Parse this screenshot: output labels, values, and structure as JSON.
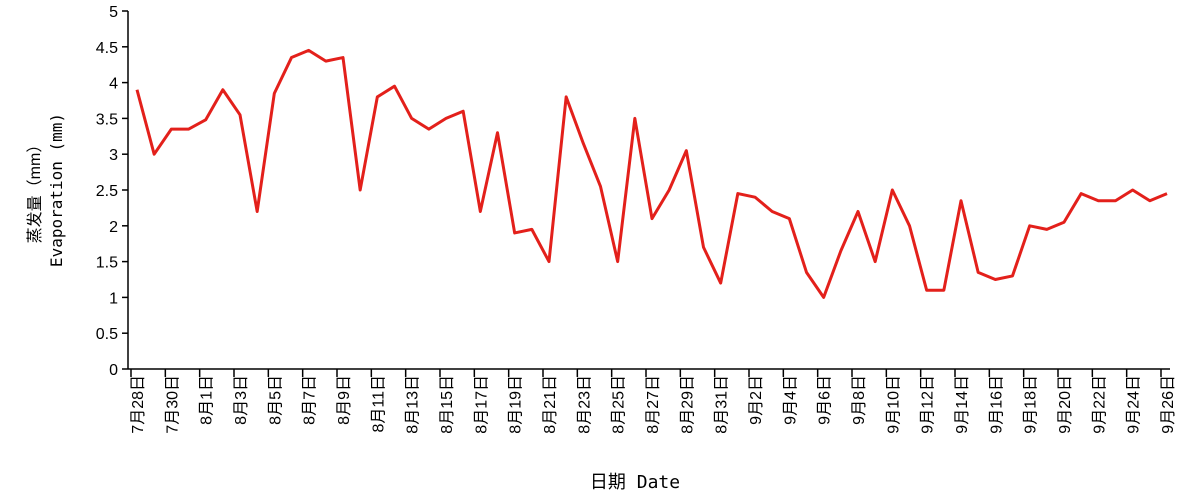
{
  "chart_data": {
    "type": "line",
    "y_label": [
      "蒸发量（mm）",
      "Evaporation (mm)"
    ],
    "x_label": "日期 Date",
    "categories": [
      "7月28日",
      null,
      "7月30日",
      null,
      "8月1日",
      null,
      "8月3日",
      null,
      "8月5日",
      null,
      "8月7日",
      null,
      "8月9日",
      null,
      "8月11日",
      null,
      "8月13日",
      null,
      "8月15日",
      null,
      "8月17日",
      null,
      "8月19日",
      null,
      "8月21日",
      null,
      "8月23日",
      null,
      "8月25日",
      null,
      "8月27日",
      null,
      "8月29日",
      null,
      "8月31日",
      null,
      "9月2日",
      null,
      "9月4日",
      null,
      "9月6日",
      null,
      "9月8日",
      null,
      "9月10日",
      null,
      "9月12日",
      null,
      "9月14日",
      null,
      "9月16日",
      null,
      "9月18日",
      null,
      "9月20日",
      null,
      "9月22日",
      null,
      "9月24日",
      null,
      "9月26日"
    ],
    "series": [
      {
        "color": "#e3201b",
        "values": [
          3.9,
          3.0,
          3.35,
          3.35,
          3.48,
          3.9,
          3.55,
          2.2,
          3.85,
          4.35,
          4.45,
          4.3,
          4.35,
          2.5,
          3.8,
          3.95,
          3.5,
          3.35,
          3.5,
          3.6,
          2.2,
          3.3,
          1.9,
          1.95,
          1.5,
          3.8,
          3.15,
          2.55,
          1.5,
          3.5,
          2.1,
          2.5,
          3.05,
          1.7,
          1.2,
          2.45,
          2.4,
          2.2,
          2.1,
          1.35,
          1.0,
          1.65,
          2.2,
          1.5,
          2.5,
          2.0,
          1.1,
          1.1,
          2.35,
          1.35,
          1.25,
          1.3,
          2.0,
          1.95,
          2.05,
          2.45,
          2.35,
          2.35,
          2.5,
          2.35,
          2.45
        ]
      }
    ],
    "ylim": [
      0,
      5
    ],
    "yticks": [
      0,
      0.5,
      1,
      1.5,
      2,
      2.5,
      3,
      3.5,
      4,
      4.5,
      5
    ]
  }
}
